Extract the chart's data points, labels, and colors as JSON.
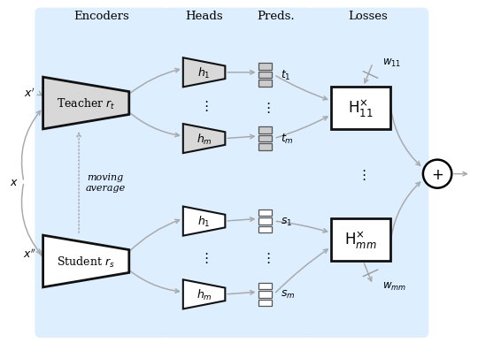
{
  "bg_color": "#ddeeff",
  "arrow_color": "#aaaaaa",
  "box_edge": "#111111",
  "title_encoders": "Encoders",
  "title_heads": "Heads",
  "title_preds": "Preds.",
  "title_losses": "Losses",
  "label_teacher": "Teacher $r_t$",
  "label_student": "Student $r_s$",
  "label_moving": "moving\naverage",
  "label_w11": "$w_{11}$",
  "label_wmm": "$w_{mm}$",
  "label_xp": "$x'$",
  "label_x": "$x$",
  "label_xpp": "$x''$"
}
